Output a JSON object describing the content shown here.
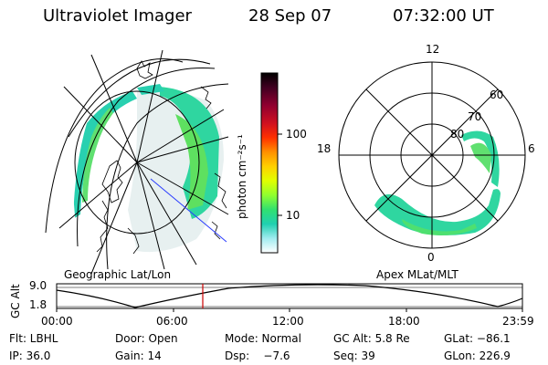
{
  "header": {
    "instrument": "Ultraviolet Imager",
    "date": "28 Sep 07",
    "time": "07:32:00 UT"
  },
  "colorbar": {
    "label": "photon cm⁻²s⁻¹",
    "ticks": [
      "100",
      "10"
    ],
    "colors": [
      "#000000",
      "#400020",
      "#800030",
      "#c00020",
      "#ff2000",
      "#ff8000",
      "#ffc000",
      "#e8ff00",
      "#a0ff20",
      "#40e060",
      "#20d0b0",
      "#a0ecf0",
      "#ffffff"
    ]
  },
  "geo_map": {
    "caption": "Geographic Lat/Lon"
  },
  "polar_plot": {
    "caption": "Apex MLat/MLT",
    "mlt_labels": {
      "top": "12",
      "left": "18",
      "right": "6",
      "bottom": "0"
    },
    "lat_labels": [
      "60",
      "70",
      "80"
    ]
  },
  "altitude_plot": {
    "ylabel": "GC Alt",
    "yticks": [
      "9.0",
      "1.8"
    ],
    "xticks": [
      "00:00",
      "06:00",
      "12:00",
      "18:00",
      "23:59"
    ],
    "current_time_marker": "07:32",
    "marker_color": "#cc0000"
  },
  "status": {
    "filter": "Flt: LBHL",
    "door": "Door: Open",
    "mode": "Mode: Normal",
    "gc_alt": "GC Alt: 5.8 Re",
    "glat": "GLat: −86.1",
    "ip": "IP: 36.0",
    "gain": "Gain: 14",
    "dsp": "Dsp:    −7.6",
    "seq": "Seq: 39",
    "glon": "GLon: 226.9"
  }
}
